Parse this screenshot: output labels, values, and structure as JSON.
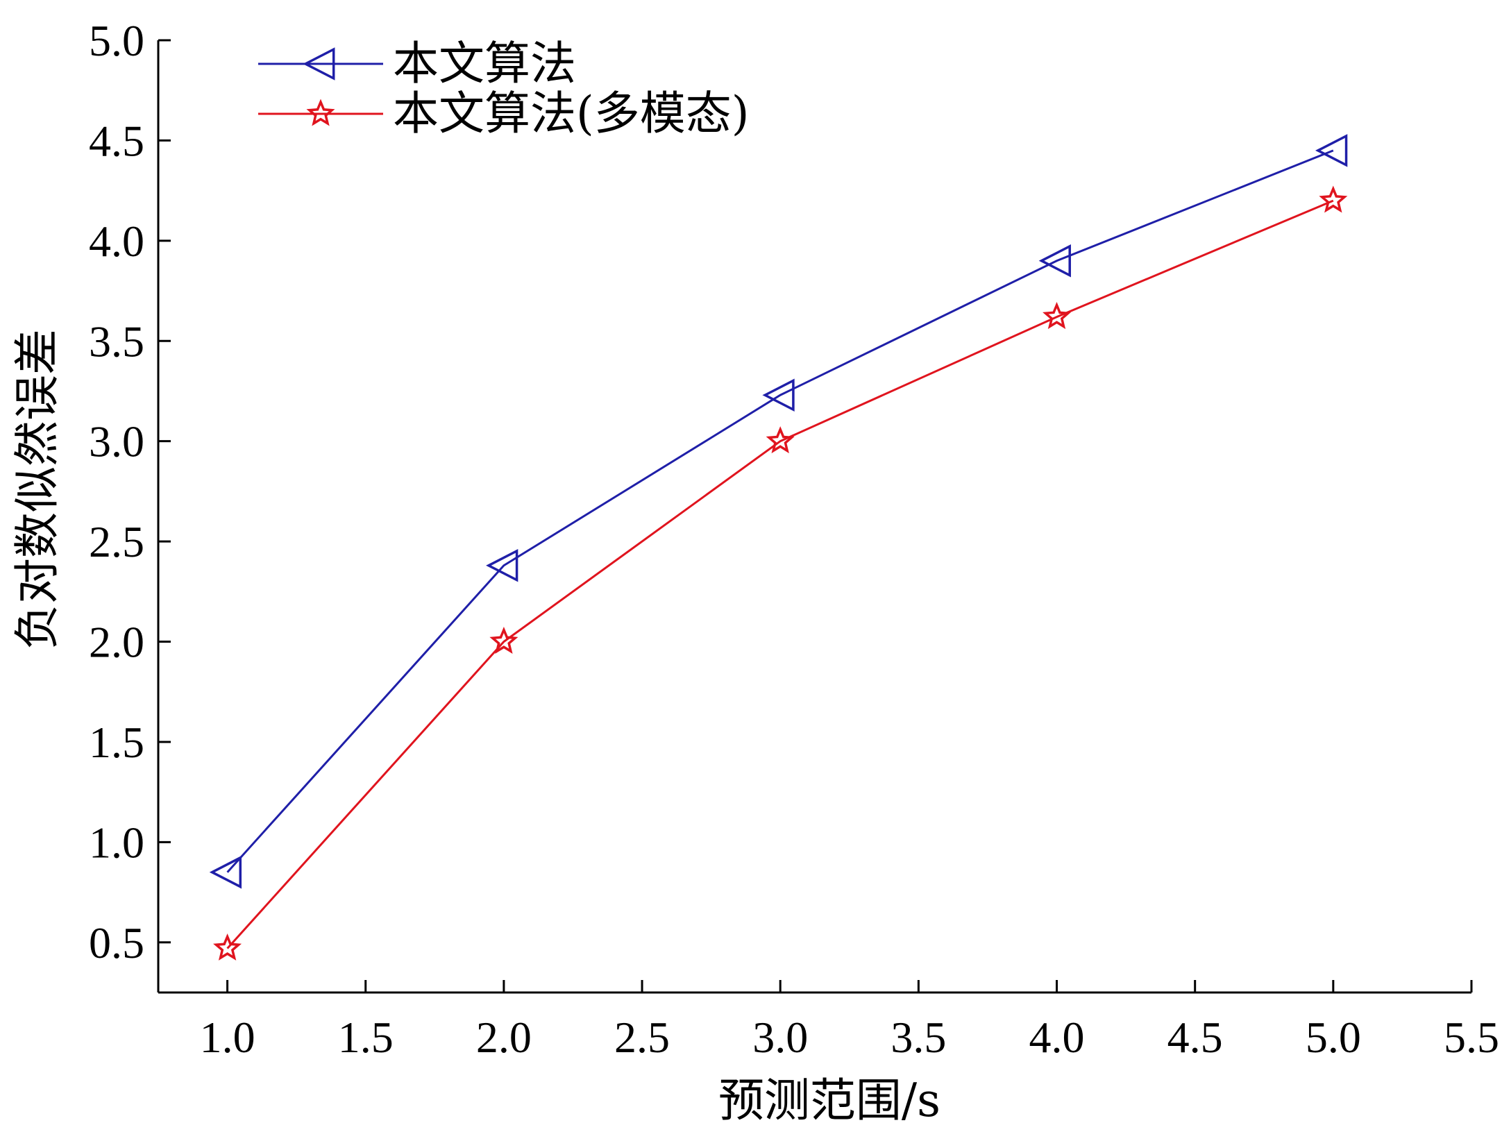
{
  "chart_data": {
    "type": "line",
    "xlabel": "预测范围/s",
    "ylabel": "负对数似然误差",
    "xlim": [
      0.75,
      5.5
    ],
    "ylim": [
      0.25,
      5.0
    ],
    "x_ticks": [
      "1.0",
      "1.5",
      "2.0",
      "2.5",
      "3.0",
      "3.5",
      "4.0",
      "4.5",
      "5.0",
      "5.5"
    ],
    "x_tick_values": [
      1.0,
      1.5,
      2.0,
      2.5,
      3.0,
      3.5,
      4.0,
      4.5,
      5.0,
      5.5
    ],
    "y_ticks": [
      "0.5",
      "1.0",
      "1.5",
      "2.0",
      "2.5",
      "3.0",
      "3.5",
      "4.0",
      "4.5",
      "5.0"
    ],
    "y_tick_values": [
      0.5,
      1.0,
      1.5,
      2.0,
      2.5,
      3.0,
      3.5,
      4.0,
      4.5,
      5.0
    ],
    "grid": false,
    "legend_position": "top-left",
    "x": [
      1.0,
      2.0,
      3.0,
      4.0,
      5.0
    ],
    "series": [
      {
        "name": "本文算法",
        "color": "#1f1fa8",
        "marker": "triangle-left",
        "values": [
          0.85,
          2.38,
          3.23,
          3.9,
          4.45
        ]
      },
      {
        "name": "本文算法(多模态)",
        "color": "#e0141e",
        "marker": "star",
        "values": [
          0.47,
          2.0,
          3.0,
          3.62,
          4.2
        ]
      }
    ]
  }
}
